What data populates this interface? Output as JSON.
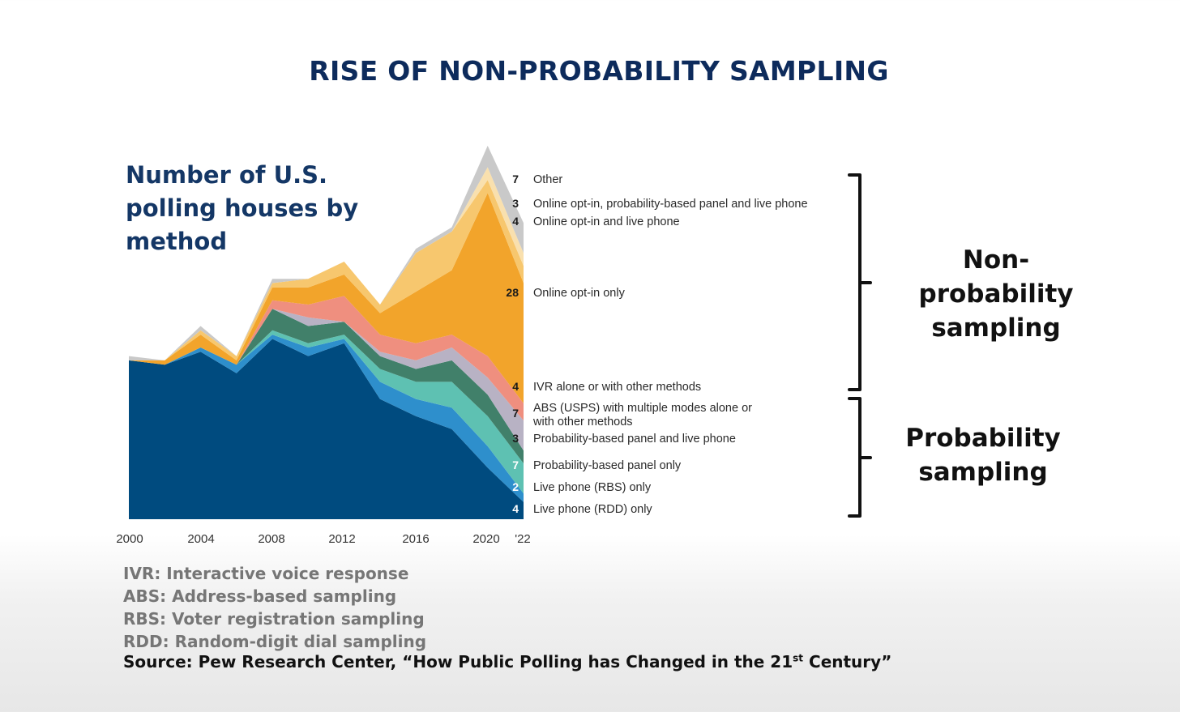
{
  "slide_title": "RISE OF NON-PROBABILITY SAMPLING",
  "chart_data": {
    "type": "area",
    "stacked": true,
    "subtitle": "Number of U.S. polling houses by method",
    "x_tick_labels": [
      "2000",
      "2004",
      "2008",
      "2012",
      "2016",
      "2020",
      "'22"
    ],
    "x": [
      2000,
      2002,
      2004,
      2006,
      2008,
      2010,
      2012,
      2014,
      2016,
      2018,
      2020,
      2022
    ],
    "series": [
      {
        "name": "Live phone (RDD) only",
        "end_label": "4",
        "color": "#004b7f",
        "values": [
          37,
          36,
          39,
          34,
          42,
          38,
          41,
          28,
          24,
          21,
          12,
          4
        ]
      },
      {
        "name": "Live phone (RBS) only",
        "end_label": "2",
        "color": "#2e8fcc",
        "values": [
          0,
          0,
          1,
          2,
          1,
          2,
          1,
          4,
          4,
          5,
          5,
          2
        ]
      },
      {
        "name": "Probability-based panel only",
        "end_label": "7",
        "color": "#5ec1b2",
        "values": [
          0,
          0,
          0,
          0,
          1,
          1,
          1,
          3,
          4,
          6,
          7,
          7
        ]
      },
      {
        "name": "Probability-based panel and live phone",
        "end_label": "3",
        "color": "#41806a",
        "values": [
          0,
          0,
          0,
          0,
          5,
          4,
          3,
          3,
          3,
          5,
          5,
          3
        ]
      },
      {
        "name": "ABS (USPS) with multiple modes alone or with other methods",
        "end_label": "7",
        "color": "#b8b2c4",
        "values": [
          0,
          0,
          0,
          0,
          0,
          2,
          0,
          1,
          2,
          3,
          4,
          7
        ]
      },
      {
        "name": "IVR alone or with other methods",
        "end_label": "4",
        "color": "#ef8f7f",
        "values": [
          0,
          0,
          0,
          0,
          2,
          3,
          6,
          4,
          4,
          3,
          5,
          4
        ]
      },
      {
        "name": "Online opt-in only",
        "end_label": "28",
        "color": "#f2a42b",
        "values": [
          0,
          1,
          3,
          1,
          3,
          4,
          5,
          5,
          12,
          15,
          38,
          28
        ]
      },
      {
        "name": "Online opt-in and live phone",
        "end_label": "4",
        "color": "#f7c76e",
        "values": [
          0,
          0,
          1,
          1,
          1,
          2,
          3,
          2,
          9,
          9,
          3,
          4
        ]
      },
      {
        "name": "Online opt-in, probability-based panel and live phone",
        "end_label": "3",
        "color": "#f9e0ae",
        "values": [
          0,
          0,
          0,
          0,
          0,
          0,
          0,
          0,
          0,
          0,
          3,
          3
        ]
      },
      {
        "name": "Other",
        "end_label": "7",
        "color": "#c9c9c9",
        "values": [
          1,
          0,
          1,
          0,
          1,
          0,
          0,
          0,
          1,
          1,
          5,
          7
        ]
      }
    ],
    "groups": [
      {
        "label": "Non-probability sampling"
      },
      {
        "label": "Probability sampling"
      }
    ]
  },
  "glossary": [
    "IVR: Interactive voice response",
    "ABS: Address-based sampling",
    "RBS: Voter registration sampling",
    "RDD: Random-digit dial sampling"
  ],
  "source": {
    "prefix": "Source: Pew Research Center, “How Public Polling has Changed in the 21",
    "superscript": "st",
    "suffix": " Century”"
  }
}
